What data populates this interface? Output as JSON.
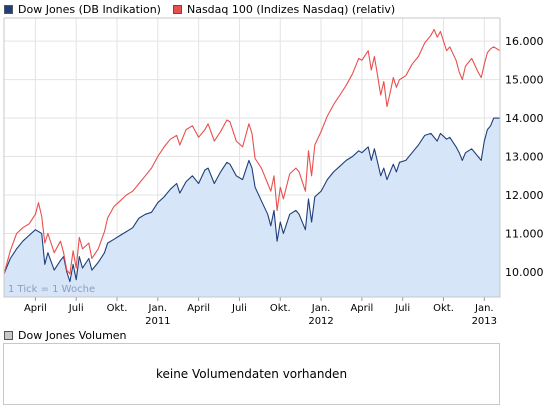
{
  "legend": {
    "series1_label": "Dow Jones (DB Indikation)",
    "series2_label": "Nasdaq 100 (Indizes Nasdaq) (relativ)"
  },
  "tick_note": "1 Tick = 1 Woche",
  "volume": {
    "legend_label": "Dow Jones Volumen",
    "empty_message": "keine Volumendaten vorhanden"
  },
  "colors": {
    "dow_line": "#1f3f7a",
    "dow_fill": "#d6e5f8",
    "nasdaq_line": "#e8504f",
    "grid": "#e3e3e3",
    "volume_swatch": "#c8c8c8"
  },
  "chart_data": {
    "type": "line",
    "x_unit": "weeks since start (Feb 2010)",
    "x_range": [
      0,
      158
    ],
    "ylim": [
      9.35,
      16.6
    ],
    "y_ticks": [
      {
        "value": 10.0,
        "label": "10.000"
      },
      {
        "value": 11.0,
        "label": "11.000"
      },
      {
        "value": 12.0,
        "label": "12.000"
      },
      {
        "value": 13.0,
        "label": "13.000"
      },
      {
        "value": 14.0,
        "label": "14.000"
      },
      {
        "value": 15.0,
        "label": "15.000"
      },
      {
        "value": 16.0,
        "label": "16.000"
      }
    ],
    "x_ticks": [
      {
        "x": 10,
        "label": "April",
        "year": ""
      },
      {
        "x": 23,
        "label": "Juli",
        "year": ""
      },
      {
        "x": 36,
        "label": "Okt.",
        "year": ""
      },
      {
        "x": 49,
        "label": "Jan.",
        "year": "2011"
      },
      {
        "x": 62,
        "label": "April",
        "year": ""
      },
      {
        "x": 75,
        "label": "Juli",
        "year": ""
      },
      {
        "x": 88,
        "label": "Okt.",
        "year": ""
      },
      {
        "x": 101,
        "label": "Jan.",
        "year": "2012"
      },
      {
        "x": 114,
        "label": "April",
        "year": ""
      },
      {
        "x": 127,
        "label": "Juli",
        "year": ""
      },
      {
        "x": 140,
        "label": "Okt.",
        "year": ""
      },
      {
        "x": 153,
        "label": "Jan.",
        "year": "2013"
      }
    ],
    "series": [
      {
        "name": "Dow Jones (DB Indikation)",
        "fill": true,
        "points": [
          [
            0,
            9.95
          ],
          [
            2,
            10.35
          ],
          [
            4,
            10.6
          ],
          [
            6,
            10.8
          ],
          [
            8,
            10.95
          ],
          [
            10,
            11.1
          ],
          [
            12,
            11.0
          ],
          [
            13,
            10.2
          ],
          [
            14,
            10.5
          ],
          [
            16,
            10.05
          ],
          [
            18,
            10.3
          ],
          [
            19,
            10.4
          ],
          [
            20,
            10.0
          ],
          [
            21,
            9.75
          ],
          [
            22,
            10.2
          ],
          [
            23,
            9.8
          ],
          [
            24,
            10.4
          ],
          [
            25,
            10.1
          ],
          [
            27,
            10.35
          ],
          [
            28,
            10.05
          ],
          [
            30,
            10.25
          ],
          [
            32,
            10.5
          ],
          [
            33,
            10.75
          ],
          [
            35,
            10.85
          ],
          [
            37,
            10.95
          ],
          [
            39,
            11.05
          ],
          [
            41,
            11.15
          ],
          [
            43,
            11.4
          ],
          [
            45,
            11.5
          ],
          [
            47,
            11.55
          ],
          [
            49,
            11.8
          ],
          [
            51,
            11.95
          ],
          [
            53,
            12.15
          ],
          [
            55,
            12.3
          ],
          [
            56,
            12.05
          ],
          [
            58,
            12.35
          ],
          [
            60,
            12.5
          ],
          [
            62,
            12.3
          ],
          [
            64,
            12.65
          ],
          [
            65,
            12.7
          ],
          [
            67,
            12.3
          ],
          [
            69,
            12.6
          ],
          [
            71,
            12.85
          ],
          [
            72,
            12.8
          ],
          [
            74,
            12.5
          ],
          [
            76,
            12.4
          ],
          [
            78,
            12.9
          ],
          [
            79,
            12.7
          ],
          [
            80,
            12.2
          ],
          [
            82,
            11.85
          ],
          [
            84,
            11.5
          ],
          [
            85,
            11.2
          ],
          [
            86,
            11.6
          ],
          [
            87,
            10.8
          ],
          [
            88,
            11.3
          ],
          [
            89,
            11.0
          ],
          [
            91,
            11.5
          ],
          [
            93,
            11.6
          ],
          [
            94,
            11.5
          ],
          [
            96,
            11.1
          ],
          [
            97,
            11.9
          ],
          [
            98,
            11.3
          ],
          [
            99,
            11.95
          ],
          [
            101,
            12.1
          ],
          [
            103,
            12.4
          ],
          [
            105,
            12.6
          ],
          [
            107,
            12.75
          ],
          [
            109,
            12.9
          ],
          [
            111,
            13.0
          ],
          [
            113,
            13.15
          ],
          [
            114,
            13.1
          ],
          [
            116,
            13.25
          ],
          [
            117,
            12.9
          ],
          [
            118,
            13.2
          ],
          [
            119,
            12.85
          ],
          [
            120,
            12.5
          ],
          [
            121,
            12.7
          ],
          [
            122,
            12.4
          ],
          [
            123,
            12.6
          ],
          [
            124,
            12.8
          ],
          [
            125,
            12.6
          ],
          [
            126,
            12.85
          ],
          [
            128,
            12.9
          ],
          [
            130,
            13.1
          ],
          [
            132,
            13.3
          ],
          [
            134,
            13.55
          ],
          [
            136,
            13.6
          ],
          [
            138,
            13.4
          ],
          [
            139,
            13.6
          ],
          [
            141,
            13.45
          ],
          [
            142,
            13.5
          ],
          [
            144,
            13.25
          ],
          [
            145,
            13.1
          ],
          [
            146,
            12.9
          ],
          [
            147,
            13.1
          ],
          [
            149,
            13.2
          ],
          [
            151,
            13.0
          ],
          [
            152,
            12.9
          ],
          [
            153,
            13.4
          ],
          [
            154,
            13.7
          ],
          [
            155,
            13.8
          ],
          [
            156,
            14.0
          ],
          [
            158,
            14.0
          ]
        ]
      },
      {
        "name": "Nasdaq 100 (Indizes Nasdaq) (relativ)",
        "fill": false,
        "points": [
          [
            0,
            9.95
          ],
          [
            2,
            10.55
          ],
          [
            4,
            11.0
          ],
          [
            6,
            11.15
          ],
          [
            8,
            11.25
          ],
          [
            10,
            11.5
          ],
          [
            11,
            11.8
          ],
          [
            12,
            11.45
          ],
          [
            13,
            10.75
          ],
          [
            14,
            11.0
          ],
          [
            16,
            10.5
          ],
          [
            18,
            10.8
          ],
          [
            19,
            10.5
          ],
          [
            20,
            10.05
          ],
          [
            21,
            9.95
          ],
          [
            22,
            10.55
          ],
          [
            23,
            10.1
          ],
          [
            24,
            10.9
          ],
          [
            25,
            10.6
          ],
          [
            27,
            10.75
          ],
          [
            28,
            10.35
          ],
          [
            30,
            10.6
          ],
          [
            32,
            11.05
          ],
          [
            33,
            11.4
          ],
          [
            35,
            11.7
          ],
          [
            37,
            11.85
          ],
          [
            39,
            12.0
          ],
          [
            41,
            12.1
          ],
          [
            43,
            12.3
          ],
          [
            45,
            12.5
          ],
          [
            47,
            12.7
          ],
          [
            49,
            13.0
          ],
          [
            51,
            13.25
          ],
          [
            53,
            13.45
          ],
          [
            55,
            13.55
          ],
          [
            56,
            13.3
          ],
          [
            58,
            13.7
          ],
          [
            60,
            13.8
          ],
          [
            62,
            13.5
          ],
          [
            64,
            13.7
          ],
          [
            65,
            13.85
          ],
          [
            67,
            13.4
          ],
          [
            69,
            13.65
          ],
          [
            71,
            13.95
          ],
          [
            72,
            13.9
          ],
          [
            74,
            13.4
          ],
          [
            76,
            13.25
          ],
          [
            78,
            13.85
          ],
          [
            79,
            13.6
          ],
          [
            80,
            12.95
          ],
          [
            82,
            12.7
          ],
          [
            84,
            12.3
          ],
          [
            85,
            12.1
          ],
          [
            86,
            12.5
          ],
          [
            87,
            11.6
          ],
          [
            88,
            12.2
          ],
          [
            89,
            11.9
          ],
          [
            91,
            12.55
          ],
          [
            93,
            12.7
          ],
          [
            94,
            12.6
          ],
          [
            96,
            12.1
          ],
          [
            97,
            13.15
          ],
          [
            98,
            12.5
          ],
          [
            99,
            13.3
          ],
          [
            101,
            13.65
          ],
          [
            103,
            14.05
          ],
          [
            105,
            14.35
          ],
          [
            107,
            14.6
          ],
          [
            109,
            14.85
          ],
          [
            111,
            15.15
          ],
          [
            113,
            15.55
          ],
          [
            114,
            15.5
          ],
          [
            116,
            15.75
          ],
          [
            117,
            15.25
          ],
          [
            118,
            15.6
          ],
          [
            119,
            15.1
          ],
          [
            120,
            14.6
          ],
          [
            121,
            14.95
          ],
          [
            122,
            14.3
          ],
          [
            123,
            14.65
          ],
          [
            124,
            15.05
          ],
          [
            125,
            14.8
          ],
          [
            126,
            15.0
          ],
          [
            128,
            15.1
          ],
          [
            130,
            15.4
          ],
          [
            132,
            15.6
          ],
          [
            134,
            15.95
          ],
          [
            136,
            16.15
          ],
          [
            137,
            16.3
          ],
          [
            138,
            16.1
          ],
          [
            139,
            16.25
          ],
          [
            141,
            15.75
          ],
          [
            142,
            15.85
          ],
          [
            144,
            15.5
          ],
          [
            145,
            15.2
          ],
          [
            146,
            15.0
          ],
          [
            147,
            15.35
          ],
          [
            149,
            15.55
          ],
          [
            151,
            15.2
          ],
          [
            152,
            15.05
          ],
          [
            153,
            15.4
          ],
          [
            154,
            15.7
          ],
          [
            155,
            15.8
          ],
          [
            156,
            15.85
          ],
          [
            158,
            15.75
          ]
        ]
      }
    ],
    "legend_position": "top-left",
    "grid": true
  }
}
